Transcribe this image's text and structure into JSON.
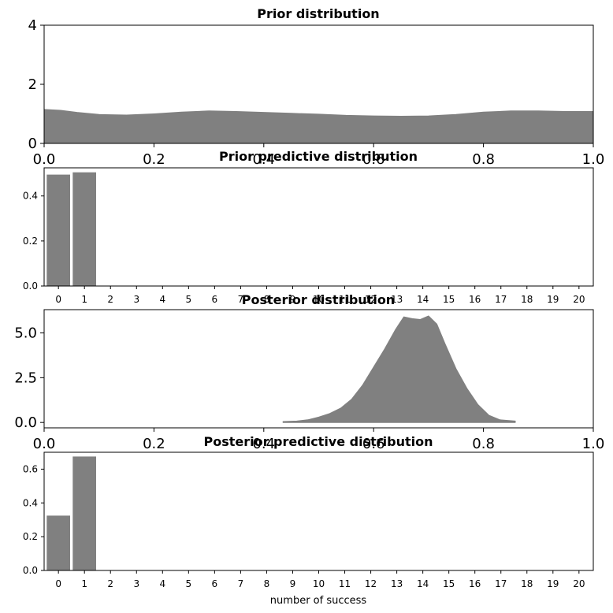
{
  "chart_data": [
    {
      "type": "area",
      "title": "Prior distribution",
      "xlim": [
        0.0,
        1.0
      ],
      "ylim": [
        0,
        4
      ],
      "x_ticks": [
        "0.0",
        "0.2",
        "0.4",
        "0.6",
        "0.8",
        "1.0"
      ],
      "y_ticks": [
        "0",
        "2",
        "4"
      ],
      "color": "#808080",
      "x": [
        0.0,
        0.03,
        0.06,
        0.1,
        0.15,
        0.2,
        0.25,
        0.3,
        0.35,
        0.4,
        0.45,
        0.5,
        0.55,
        0.6,
        0.65,
        0.7,
        0.75,
        0.8,
        0.85,
        0.9,
        0.95,
        1.0
      ],
      "y": [
        1.15,
        1.12,
        1.05,
        0.98,
        0.96,
        1.0,
        1.06,
        1.1,
        1.08,
        1.05,
        1.02,
        0.99,
        0.95,
        0.93,
        0.92,
        0.93,
        0.98,
        1.06,
        1.1,
        1.1,
        1.08,
        1.08
      ]
    },
    {
      "type": "bar",
      "title": "Prior predictive distribution",
      "categories": [
        "0",
        "1",
        "2",
        "3",
        "4",
        "5",
        "6",
        "7",
        "8",
        "9",
        "10",
        "11",
        "12",
        "13",
        "14",
        "15",
        "16",
        "17",
        "18",
        "19",
        "20"
      ],
      "values": [
        0.495,
        0.505,
        0,
        0,
        0,
        0,
        0,
        0,
        0,
        0,
        0,
        0,
        0,
        0,
        0,
        0,
        0,
        0,
        0,
        0,
        0
      ],
      "ylim": [
        0,
        0.525
      ],
      "y_ticks": [
        "0.0",
        "0.2",
        "0.4"
      ],
      "color": "#808080"
    },
    {
      "type": "area",
      "title": "Posterior distribution",
      "xlim": [
        0.0,
        1.0
      ],
      "ylim": [
        -0.3,
        6.3
      ],
      "x_ticks": [
        "0.0",
        "0.2",
        "0.4",
        "0.6",
        "0.8",
        "1.0"
      ],
      "y_ticks": [
        "0.0",
        "2.5",
        "5.0"
      ],
      "color": "#808080",
      "x": [
        0.435,
        0.46,
        0.48,
        0.5,
        0.52,
        0.54,
        0.56,
        0.58,
        0.6,
        0.62,
        0.64,
        0.655,
        0.67,
        0.685,
        0.7,
        0.715,
        0.73,
        0.75,
        0.77,
        0.79,
        0.81,
        0.83,
        0.858
      ],
      "y": [
        0.05,
        0.08,
        0.15,
        0.3,
        0.5,
        0.8,
        1.3,
        2.1,
        3.1,
        4.1,
        5.2,
        5.9,
        5.8,
        5.75,
        5.95,
        5.5,
        4.4,
        3.0,
        1.9,
        1.0,
        0.4,
        0.15,
        0.08
      ]
    },
    {
      "type": "bar",
      "title": "Posterior predictive distribution",
      "xlabel": "number of success",
      "categories": [
        "0",
        "1",
        "2",
        "3",
        "4",
        "5",
        "6",
        "7",
        "8",
        "9",
        "10",
        "11",
        "12",
        "13",
        "14",
        "15",
        "16",
        "17",
        "18",
        "19",
        "20"
      ],
      "values": [
        0.325,
        0.675,
        0,
        0,
        0,
        0,
        0,
        0,
        0,
        0,
        0,
        0,
        0,
        0,
        0,
        0,
        0,
        0,
        0,
        0,
        0
      ],
      "ylim": [
        0,
        0.7
      ],
      "y_ticks": [
        "0.0",
        "0.2",
        "0.4",
        "0.6"
      ],
      "color": "#808080"
    }
  ]
}
